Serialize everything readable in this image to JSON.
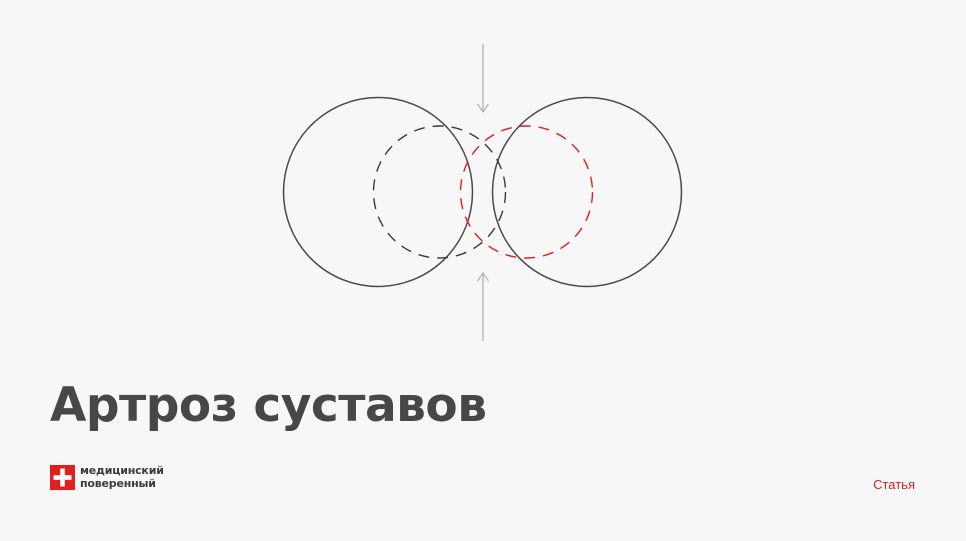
{
  "article": {
    "title": "Артроз суставов",
    "category": "Статья"
  },
  "brand": {
    "line1": "медицинский",
    "line2": "поверенный",
    "icon": "red-square-with-white-cross"
  },
  "colors": {
    "accent": "#e0201c",
    "title_text": "#474747",
    "circle_stroke": "#4a4a4a",
    "arrow_stroke": "#b3b3b3",
    "background": "#f7f7f7"
  }
}
